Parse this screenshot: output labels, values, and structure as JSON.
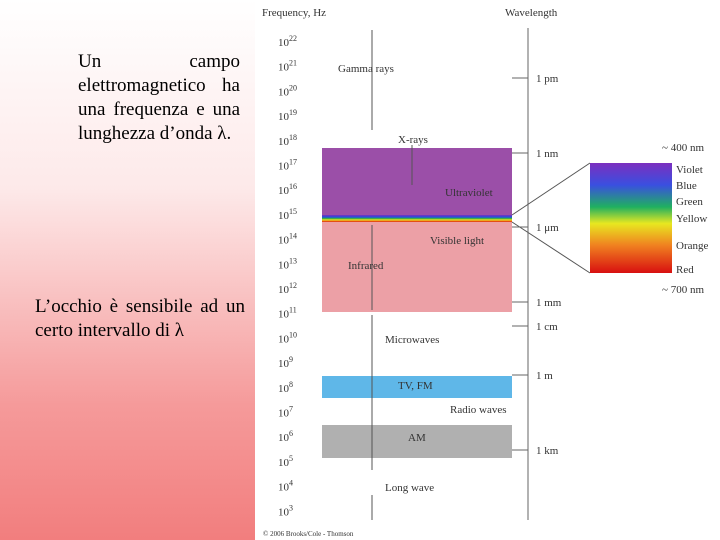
{
  "slide": {
    "paragraph1": "Un campo elettromagnetico ha una frequenza e una lunghezza d’onda λ.",
    "paragraph2": "L’occhio è sensibile ad un certo intervallo di λ"
  },
  "diagram": {
    "frequency_header": "Frequency, Hz",
    "wavelength_header": "Wavelength",
    "frequencies": [
      {
        "base": "10",
        "exp": "22"
      },
      {
        "base": "10",
        "exp": "21"
      },
      {
        "base": "10",
        "exp": "20"
      },
      {
        "base": "10",
        "exp": "19"
      },
      {
        "base": "10",
        "exp": "18"
      },
      {
        "base": "10",
        "exp": "17"
      },
      {
        "base": "10",
        "exp": "16"
      },
      {
        "base": "10",
        "exp": "15"
      },
      {
        "base": "10",
        "exp": "14"
      },
      {
        "base": "10",
        "exp": "13"
      },
      {
        "base": "10",
        "exp": "12"
      },
      {
        "base": "10",
        "exp": "11"
      },
      {
        "base": "10",
        "exp": "10"
      },
      {
        "base": "10",
        "exp": "9"
      },
      {
        "base": "10",
        "exp": "8"
      },
      {
        "base": "10",
        "exp": "7"
      },
      {
        "base": "10",
        "exp": "6"
      },
      {
        "base": "10",
        "exp": "5"
      },
      {
        "base": "10",
        "exp": "4"
      },
      {
        "base": "10",
        "exp": "3"
      }
    ],
    "wavelengths": [
      "1 pm",
      "1 nm",
      "1 μm",
      "1 mm",
      "1 cm",
      "1 m",
      "1 km"
    ],
    "bands": [
      "Gamma rays",
      "X-rays",
      "Ultraviolet",
      "Visible light",
      "Infrared",
      "Microwaves",
      "TV, FM",
      "Radio waves",
      "AM",
      "Long wave"
    ],
    "visible": {
      "top": "~ 400 nm",
      "bottom": "~ 700 nm",
      "colors": [
        "Violet",
        "Blue",
        "Green",
        "Yellow",
        "Orange",
        "Red"
      ]
    },
    "copyright": "© 2006 Brooks/Cole - Thomson"
  }
}
